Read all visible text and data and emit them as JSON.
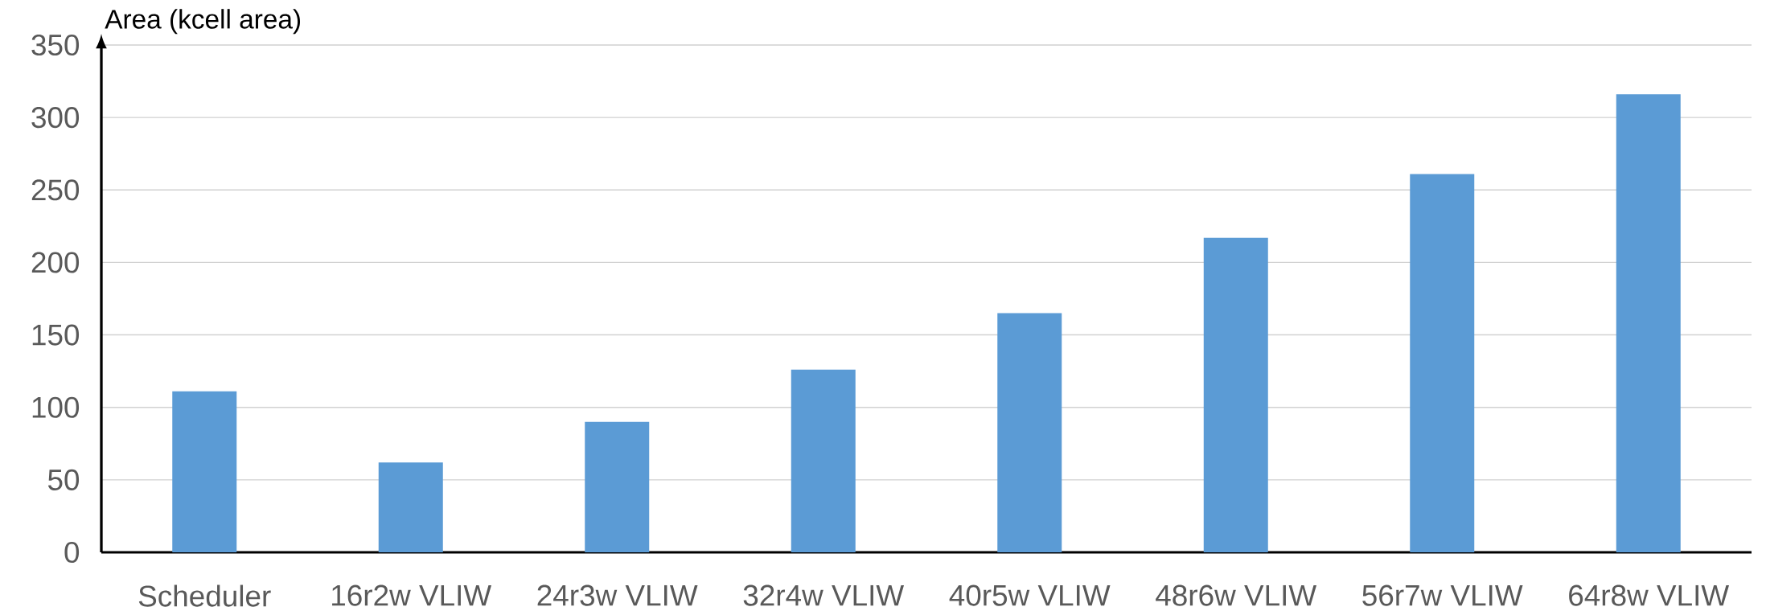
{
  "chart_data": {
    "type": "bar",
    "ylabel": "Area (kcell area)",
    "categories": [
      "Scheduler",
      "16r2w VLIW",
      "24r3w VLIW",
      "32r4w VLIW",
      "40r5w VLIW",
      "48r6w VLIW",
      "56r7w VLIW",
      "64r8w VLIW"
    ],
    "values": [
      111,
      62,
      90,
      126,
      165,
      217,
      261,
      316
    ],
    "color": "#5b9bd5",
    "ylim": [
      0,
      350
    ],
    "yticks": [
      0,
      50,
      100,
      150,
      200,
      250,
      300,
      350
    ],
    "grid": "y"
  }
}
